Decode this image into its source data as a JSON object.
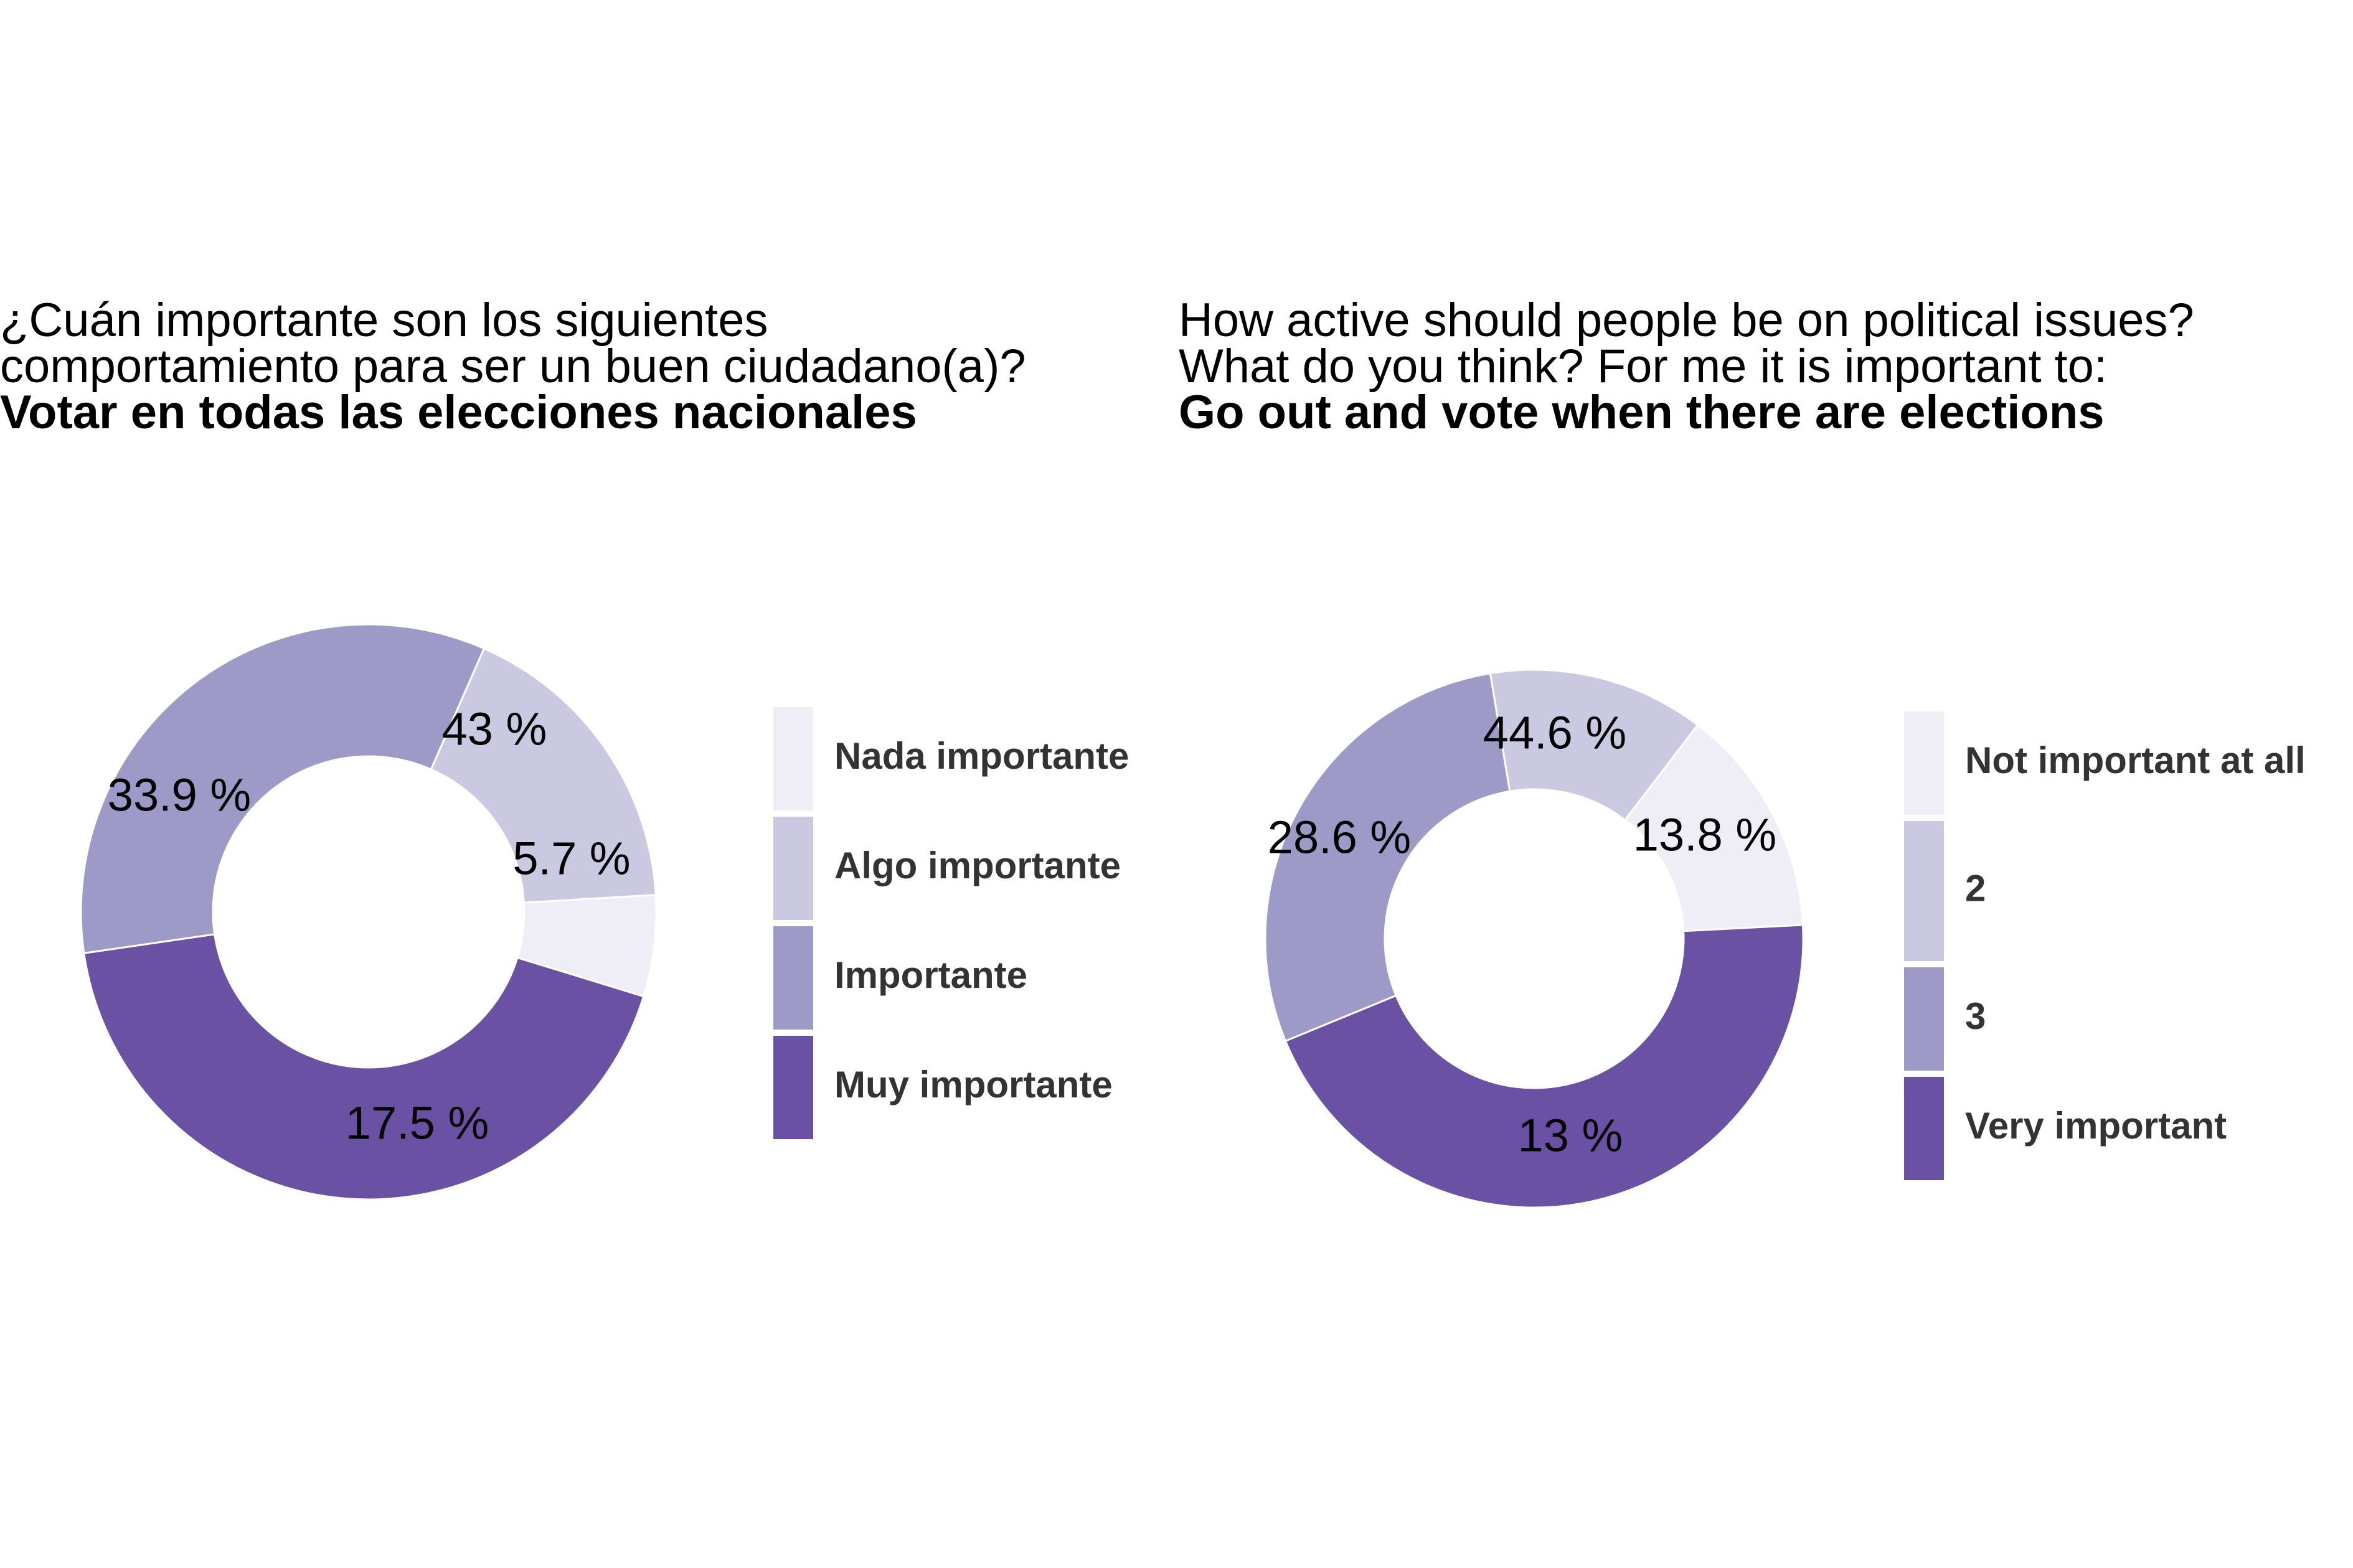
{
  "chart_data": [
    {
      "type": "pie",
      "title_lines": [
        "¿Cuán importante son los siguientes",
        "comportamiento para ser un buen ciudadano(a)?"
      ],
      "subtitle": "Votar en todas las elecciones nacionales",
      "categories": [
        "Nada importante",
        "Algo importante",
        "Importante",
        "Muy importante"
      ],
      "values": [
        5.7,
        17.5,
        33.9,
        43
      ],
      "data_labels": [
        "5.7 %",
        "17.5 %",
        "33.9 %",
        "43 %"
      ],
      "colors": [
        "#efedf5",
        "#cbc9e2",
        "#9e9ac8",
        "#6a51a3"
      ],
      "legend_position": "right"
    },
    {
      "type": "pie",
      "title_lines": [
        "How active should people be on political issues?",
        "What do you think? For me it is important to:"
      ],
      "subtitle": "Go out and vote when there are elections",
      "categories": [
        "Not important at all",
        "2",
        "3",
        "Very important"
      ],
      "values": [
        13.8,
        13,
        28.6,
        44.6
      ],
      "data_labels": [
        "13.8 %",
        "13 %",
        "28.6 %",
        "44.6 %"
      ],
      "colors": [
        "#efedf5",
        "#cbc9e2",
        "#9e9ac8",
        "#6a51a3"
      ],
      "legend_position": "right"
    }
  ]
}
